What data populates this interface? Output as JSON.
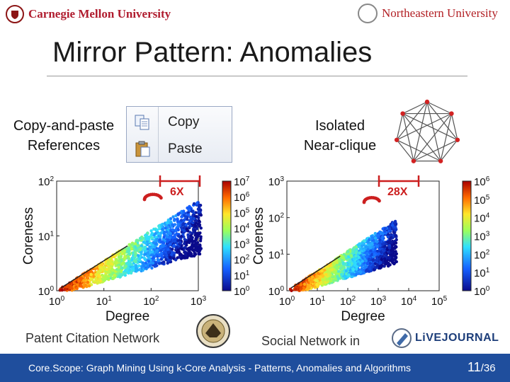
{
  "header": {
    "left_logo": "Carnegie Mellon University",
    "right_logo": "Northeastern University"
  },
  "slide": {
    "title": "Mirror Pattern: Anomalies",
    "left_label": [
      "Copy-and-paste",
      "References"
    ],
    "right_label": [
      "Isolated",
      "Near-clique"
    ],
    "copy_menu": {
      "copy": "Copy",
      "paste": "Paste"
    },
    "left_caption": "Patent Citation Network",
    "right_caption": "Social Network in",
    "livejournal_logo": "LiVEJOURNAL"
  },
  "footer": {
    "text": "Core.Scope: Graph Mining Using k-Core Analysis - Patterns, Anomalies and Algorithms",
    "page": "11",
    "total": "/36"
  },
  "chart_data": [
    {
      "type": "heatmap",
      "xlabel": "Degree",
      "ylabel": "Coreness",
      "xscale": "log",
      "yscale": "log",
      "x_ticks": [
        "10^0",
        "10^1",
        "10^2",
        "10^3"
      ],
      "y_ticks": [
        "10^0",
        "10^1",
        "10^2"
      ],
      "colorbar_ticks": [
        "10^0",
        "10^1",
        "10^2",
        "10^3",
        "10^4",
        "10^5",
        "10^6",
        "10^7"
      ],
      "annotation": "6X"
    },
    {
      "type": "heatmap",
      "xlabel": "Degree",
      "ylabel": "Coreness",
      "xscale": "log",
      "yscale": "log",
      "x_ticks": [
        "10^0",
        "10^1",
        "10^2",
        "10^3",
        "10^4",
        "10^5"
      ],
      "y_ticks": [
        "10^0",
        "10^1",
        "10^2",
        "10^3"
      ],
      "colorbar_ticks": [
        "10^0",
        "10^1",
        "10^2",
        "10^3",
        "10^4",
        "10^5",
        "10^6"
      ],
      "annotation": "28X"
    }
  ],
  "colors": {
    "footer_bg": "#1f4e9d",
    "cmu_red": "#b01c2e",
    "neu_red": "#b21f24",
    "annotation_red": "#cc1f1f"
  }
}
